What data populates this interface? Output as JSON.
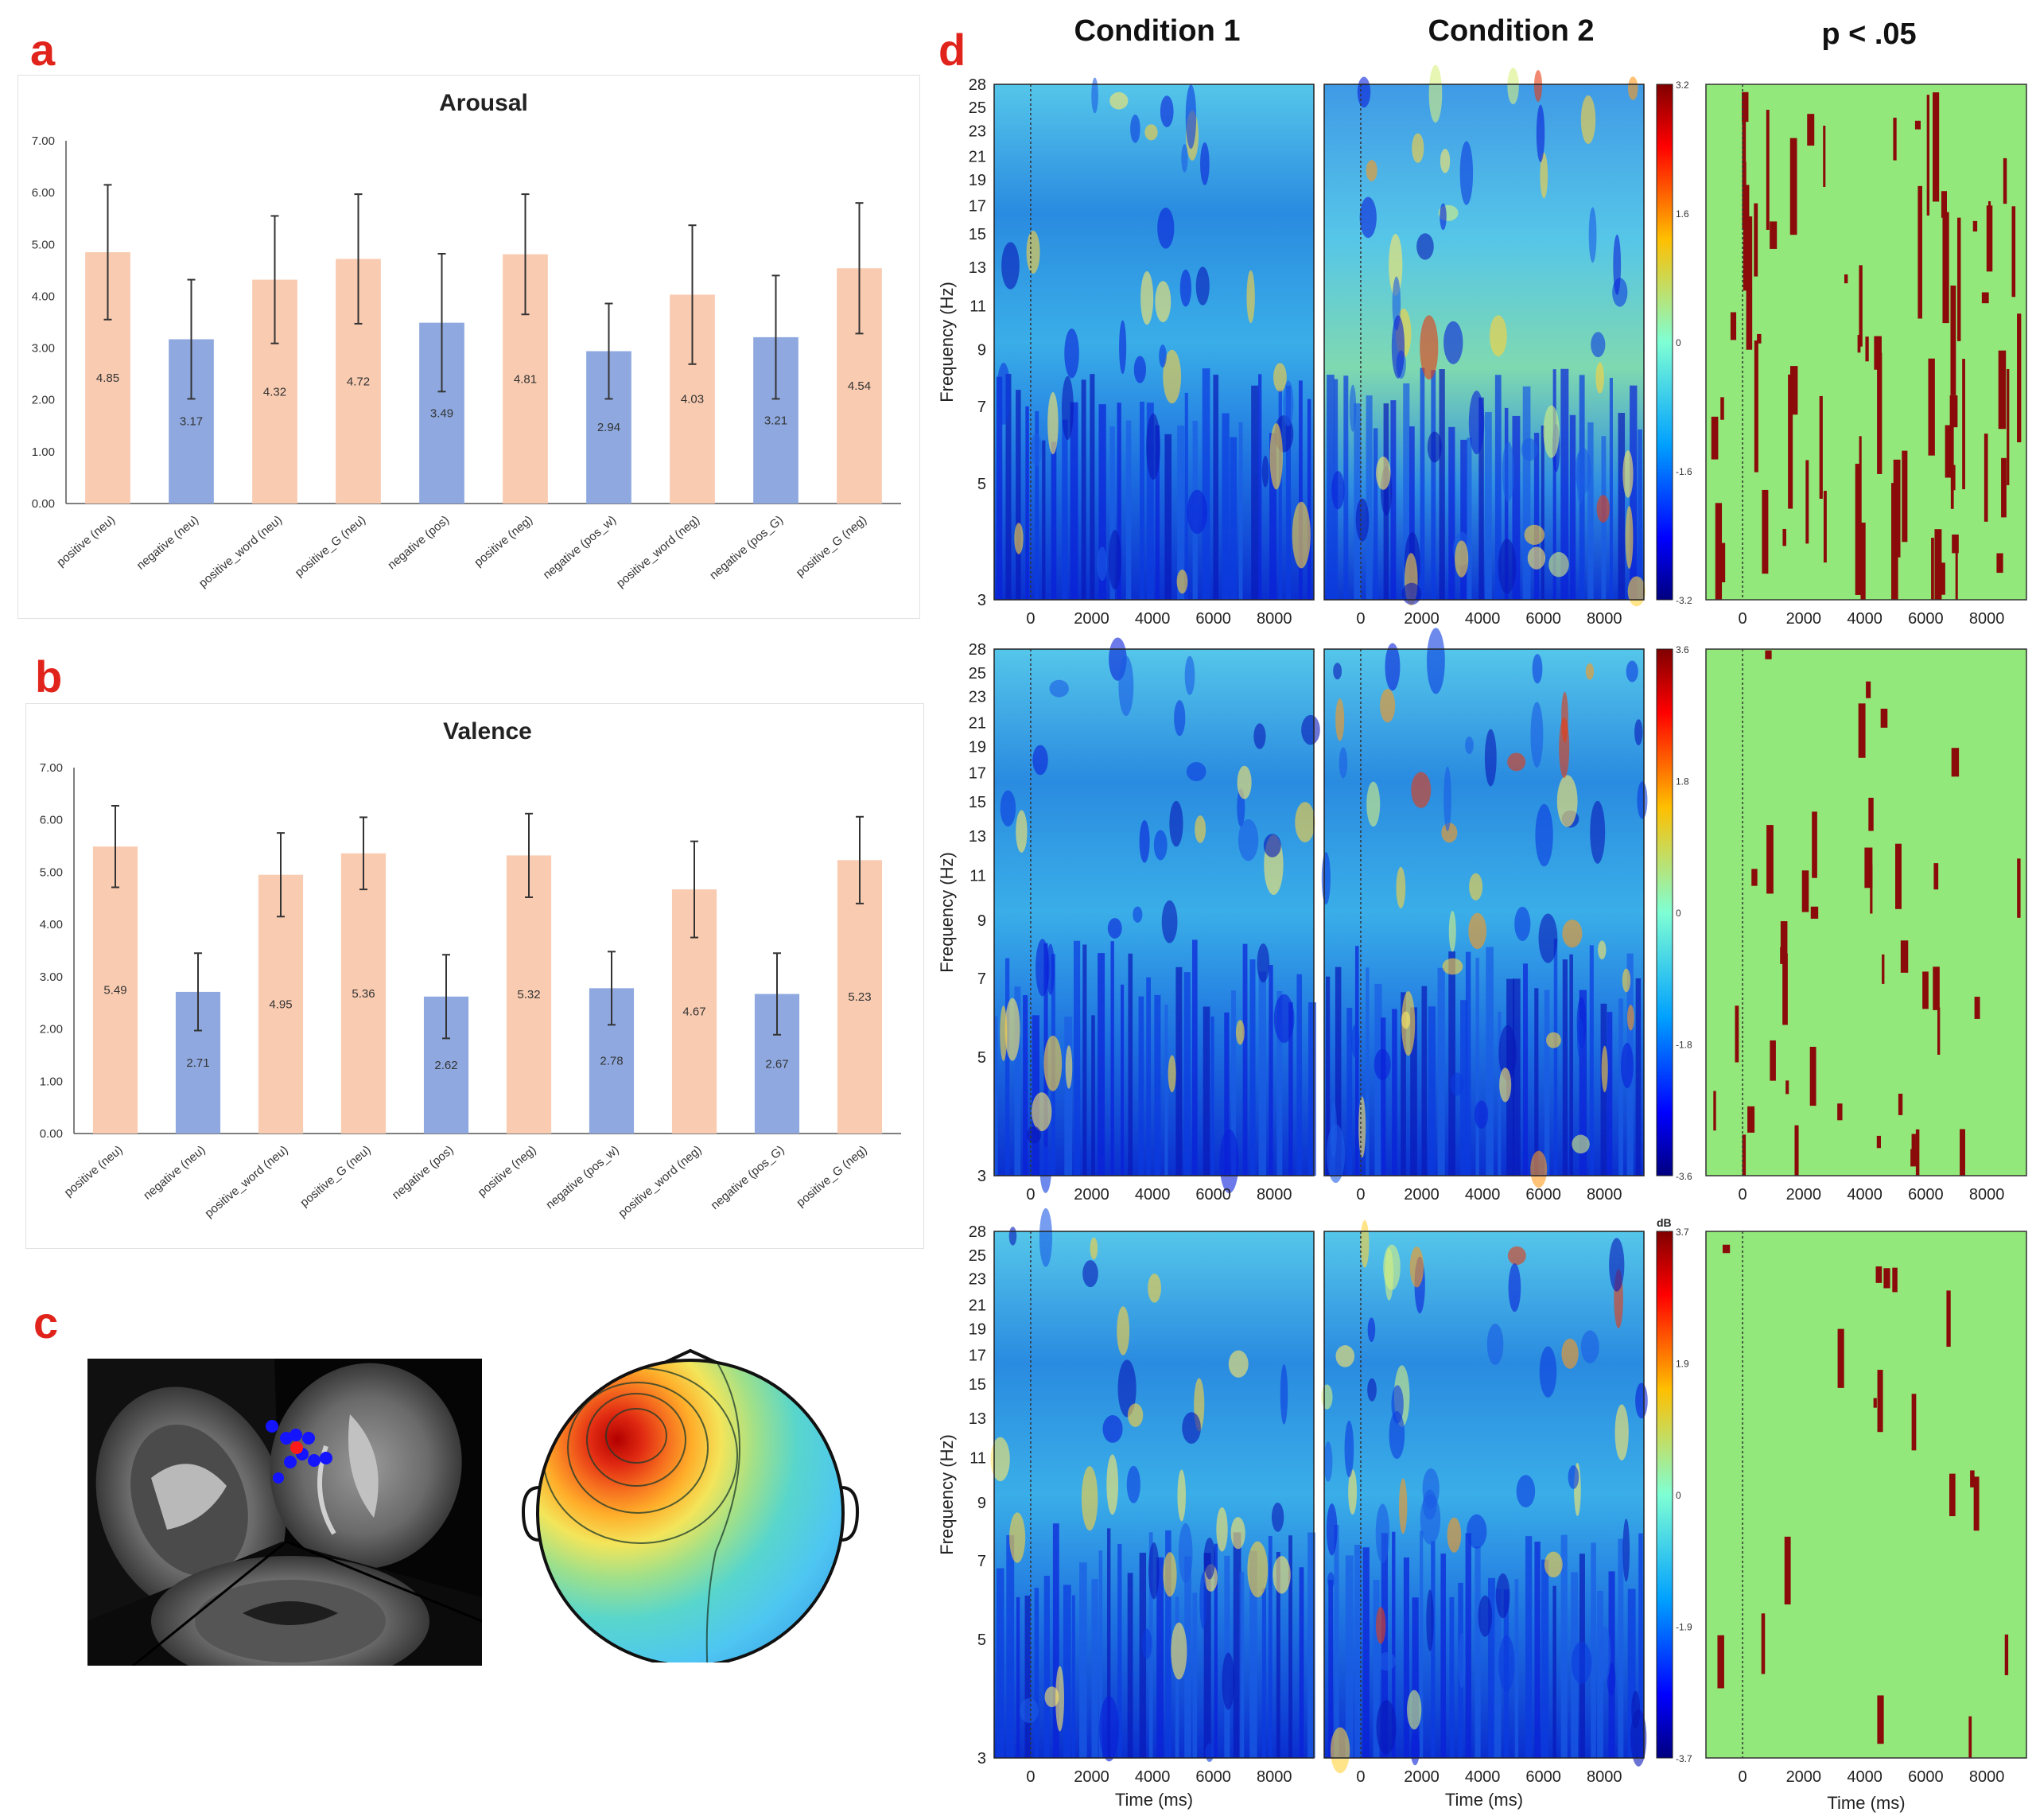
{
  "panel_labels": {
    "a": "a",
    "b": "b",
    "c": "c",
    "d": "d"
  },
  "chart_data": [
    {
      "id": "arousal",
      "type": "bar",
      "title": "Arousal",
      "categories": [
        "positive (neu)",
        "negative (neu)",
        "positive_word (neu)",
        "positive_G (neu)",
        "negative (pos)",
        "positive (neg)",
        "negative (pos_w)",
        "positive_word (neg)",
        "negative (pos_G)",
        "positive_G (neg)"
      ],
      "values": [
        4.85,
        3.17,
        4.32,
        4.72,
        3.49,
        4.81,
        2.94,
        4.03,
        3.21,
        4.54
      ],
      "value_labels": [
        "4.85",
        "3.17",
        "4.32",
        "4.72",
        "3.49",
        "4.81",
        "2.94",
        "4.03",
        "3.21",
        "4.54"
      ],
      "error_high": [
        6.15,
        4.32,
        5.55,
        5.97,
        4.82,
        5.97,
        3.86,
        5.37,
        4.4,
        5.8
      ],
      "error_low": [
        3.55,
        2.02,
        3.09,
        3.47,
        2.16,
        3.65,
        2.02,
        2.69,
        2.02,
        3.28
      ],
      "bar_colors": [
        "#f9cbb1",
        "#8fa9e0",
        "#f9cbb1",
        "#f9cbb1",
        "#8fa9e0",
        "#f9cbb1",
        "#8fa9e0",
        "#f9cbb1",
        "#8fa9e0",
        "#f9cbb1"
      ],
      "yticks": [
        "0.00",
        "1.00",
        "2.00",
        "3.00",
        "4.00",
        "5.00",
        "6.00",
        "7.00"
      ],
      "ylim": [
        0,
        7
      ],
      "grid": false
    },
    {
      "id": "valence",
      "type": "bar",
      "title": "Valence",
      "categories": [
        "positive (neu)",
        "negative (neu)",
        "positive_word (neu)",
        "positive_G (neu)",
        "negative (pos)",
        "positive (neg)",
        "negative (pos_w)",
        "positive_word (neg)",
        "negative (pos_G)",
        "positive_G (neg)"
      ],
      "values": [
        5.49,
        2.71,
        4.95,
        5.36,
        2.62,
        5.32,
        2.78,
        4.67,
        2.67,
        5.23
      ],
      "value_labels": [
        "5.49",
        "2.71",
        "4.95",
        "5.36",
        "2.62",
        "5.32",
        "2.78",
        "4.67",
        "2.67",
        "5.23"
      ],
      "error_high": [
        6.27,
        3.45,
        5.75,
        6.05,
        3.42,
        6.12,
        3.48,
        5.59,
        3.45,
        6.06
      ],
      "error_low": [
        4.71,
        1.97,
        4.15,
        4.67,
        1.82,
        4.52,
        2.08,
        3.75,
        1.89,
        4.4
      ],
      "bar_colors": [
        "#f9cbb1",
        "#8fa9e0",
        "#f9cbb1",
        "#f9cbb1",
        "#8fa9e0",
        "#f9cbb1",
        "#8fa9e0",
        "#f9cbb1",
        "#8fa9e0",
        "#f9cbb1"
      ],
      "yticks": [
        "0.00",
        "1.00",
        "2.00",
        "3.00",
        "4.00",
        "5.00",
        "6.00",
        "7.00"
      ],
      "ylim": [
        0,
        7
      ],
      "grid": false
    },
    {
      "id": "time-frequency",
      "type": "heatmap",
      "column_titles": [
        "Condition 1",
        "Condition 2",
        "p < .05"
      ],
      "ylabel": "Frequency (Hz)",
      "xlabel": "Time (ms)",
      "freq_ticks": [
        "28",
        "25",
        "23",
        "21",
        "19",
        "17",
        "15",
        "13",
        "11",
        "9",
        "7",
        "5",
        "3"
      ],
      "time_ticks": [
        "0",
        "2000",
        "4000",
        "6000",
        "8000"
      ],
      "colorbar_unit": "dB",
      "rows": [
        {
          "colorbar_ticks": [
            "3.2",
            "1.6",
            "0",
            "-1.6",
            "-3.2"
          ]
        },
        {
          "colorbar_ticks": [
            "3.6",
            "1.8",
            "0",
            "-1.8",
            "-3.6"
          ]
        },
        {
          "colorbar_ticks": [
            "3.7",
            "1.9",
            "0",
            "-1.9",
            "-3.7"
          ]
        }
      ]
    }
  ]
}
